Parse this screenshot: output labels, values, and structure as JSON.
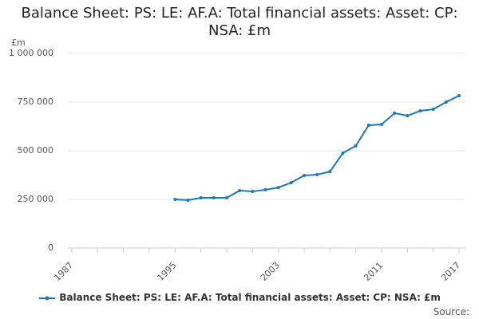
{
  "chart_data": {
    "type": "line",
    "title": "Balance Sheet: PS: LE: AF.A: Total financial assets: Asset: CP: NSA: £m",
    "y_unit": "£m",
    "x": [
      1995,
      1996,
      1997,
      1998,
      1999,
      2000,
      2001,
      2002,
      2003,
      2004,
      2005,
      2006,
      2007,
      2008,
      2009,
      2010,
      2011,
      2012,
      2013,
      2014,
      2015,
      2016,
      2017
    ],
    "series": [
      {
        "name": "Balance Sheet: PS: LE: AF.A: Total financial assets: Asset: CP: NSA: £m",
        "color": "#1a7ab8",
        "values": [
          250000,
          246000,
          258000,
          258000,
          258000,
          295000,
          291000,
          299000,
          311000,
          336000,
          373000,
          377000,
          393000,
          488000,
          525000,
          631000,
          635000,
          693000,
          680000,
          705000,
          713000,
          750000,
          783000
        ]
      }
    ],
    "xlim": [
      1987,
      2017
    ],
    "xticks": [
      1987,
      1995,
      2003,
      2011,
      2017
    ],
    "x_minor_ticks": [
      1987,
      1989,
      1991,
      1993,
      1995,
      1997,
      1999,
      2001,
      2003,
      2005,
      2007,
      2009,
      2011,
      2013,
      2015,
      2017
    ],
    "ylim": [
      0,
      1000000
    ],
    "yticks": [
      0,
      {
        "value": 250000,
        "label": "250 000"
      },
      {
        "value": 500000,
        "label": "500 000"
      },
      {
        "value": 750000,
        "label": "750 000"
      },
      {
        "value": 1000000,
        "label": "1 000 000"
      }
    ],
    "grid": true,
    "legend": "bottom",
    "source": "Source:"
  }
}
